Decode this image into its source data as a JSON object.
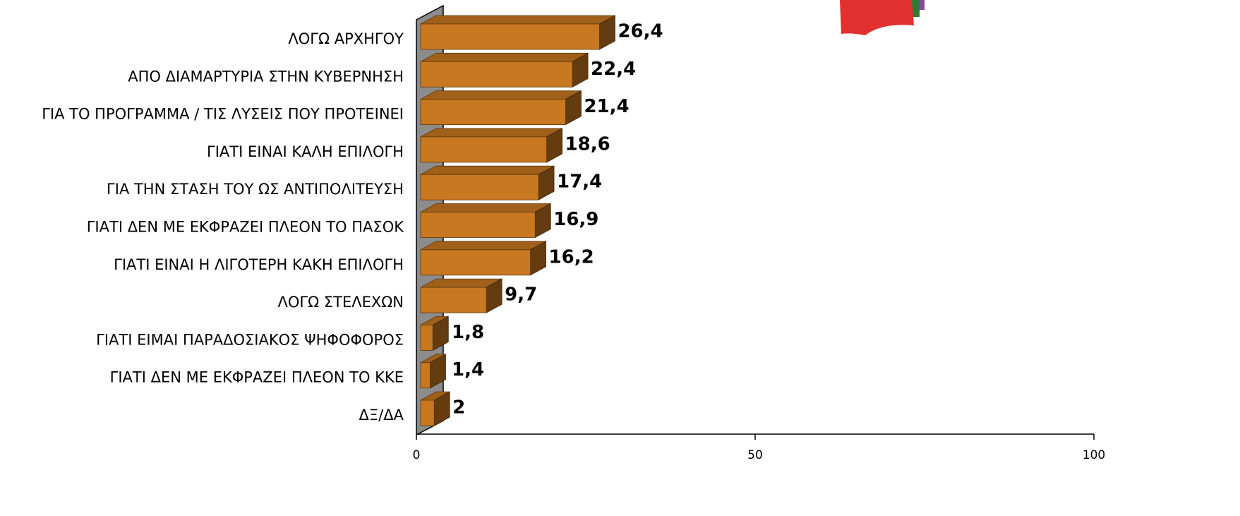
{
  "chart_data": {
    "type": "bar",
    "orientation": "horizontal",
    "categories": [
      "ΛΟΓΩ ΑΡΧΗΓΟΥ",
      "ΑΠΟ ΔΙΑΜΑΡΤΥΡΙΑ ΣΤΗΝ ΚΥΒΕΡΝΗΣΗ",
      "ΓΙΑ ΤΟ ΠΡΟΓΡΑΜΜΑ / ΤΙΣ ΛΥΣΕΙΣ ΠΟΥ ΠΡΟΤΕΙΝΕΙ",
      "ΓΙΑΤΙ ΕΙΝΑΙ ΚΑΛΗ ΕΠΙΛΟΓΗ",
      "ΓΙΑ ΤΗΝ ΣΤΑΣΗ ΤΟΥ ΩΣ ΑΝΤΙΠΟΛΙΤΕΥΣΗ",
      "ΓΙΑΤΙ ΔΕΝ ΜΕ ΕΚΦΡΑΖΕΙ ΠΛΕΟΝ ΤΟ ΠΑΣΟΚ",
      "ΓΙΑΤΙ ΕΙΝΑΙ Η ΛΙΓΟΤΕΡΗ ΚΑΚΗ ΕΠΙΛΟΓΗ",
      "ΛΟΓΩ ΣΤΕΛΕΧΩΝ",
      "ΓΙΑΤΙ ΕΙΜΑΙ ΠΑΡΑΔΟΣΙΑΚΟΣ ΨΗΦΟΦΟΡΟΣ",
      "ΓΙΑΤΙ ΔΕΝ ΜΕ ΕΚΦΡΑΖΕΙ ΠΛΕΟΝ ΤΟ ΚΚΕ",
      "ΔΞ/ΔΑ"
    ],
    "values": [
      26.4,
      22.4,
      21.4,
      18.6,
      17.4,
      16.9,
      16.2,
      9.7,
      1.8,
      1.4,
      2
    ],
    "value_labels": [
      "26,4",
      "22,4",
      "21,4",
      "18,6",
      "17,4",
      "16,9",
      "16,2",
      "9,7",
      "1,8",
      "1,4",
      "2"
    ],
    "color": "#c87820",
    "xlim": [
      0,
      100
    ],
    "xticks": [
      0,
      50,
      100
    ]
  }
}
